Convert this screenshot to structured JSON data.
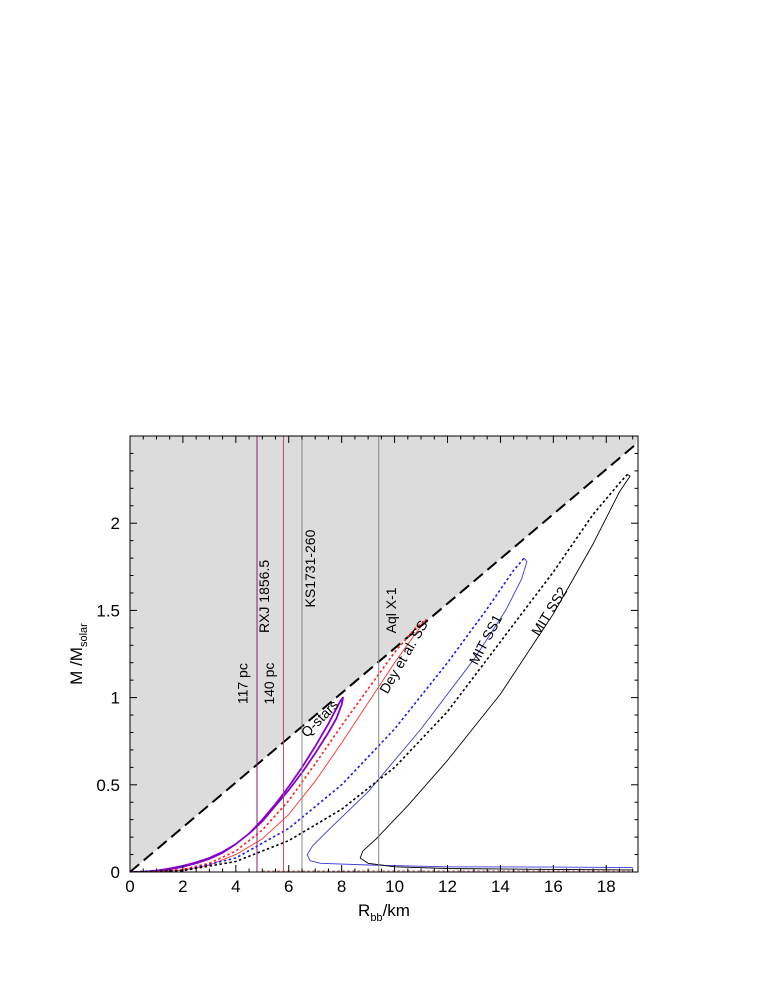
{
  "chart_data": {
    "type": "line",
    "title": "",
    "xlabel": {
      "main": "R",
      "sub": "bb",
      "rest": "/km"
    },
    "ylabel": {
      "main": "M /M",
      "sub": "solar"
    },
    "xlim": [
      0,
      19.2
    ],
    "ylim": [
      0,
      2.5
    ],
    "x_ticks": [
      0,
      2,
      4,
      6,
      8,
      10,
      12,
      14,
      16,
      18
    ],
    "y_ticks": [
      {
        "value": 0,
        "label": "0"
      },
      {
        "value": 0.5,
        "label": "0.5"
      },
      {
        "value": 1,
        "label": "1"
      },
      {
        "value": 1.5,
        "label": "1.5"
      },
      {
        "value": 2,
        "label": "2"
      }
    ],
    "forbidden_region": {
      "fill": "#dcdcdc",
      "line": [
        [
          0,
          0
        ],
        [
          19.1,
          2.45
        ]
      ]
    },
    "vertical_lines": [
      {
        "x": 4.8,
        "label": "117 pc",
        "label_x": 4.45,
        "label_y": 1.08,
        "color": "#8b1c6b"
      },
      {
        "x": 5.8,
        "label": "140 pc",
        "label_x": 5.45,
        "label_y": 1.08,
        "color": "#b05070"
      },
      {
        "x": 5.8,
        "label": "RXJ 1856.5",
        "label_x": 5.25,
        "label_y": 1.58,
        "color": "#b05070"
      },
      {
        "x": 6.5,
        "label": "KS1731-260",
        "label_x": 7.0,
        "label_y": 1.74,
        "color": "#888888"
      },
      {
        "x": 9.4,
        "label": "Aql X-1",
        "label_x": 10.05,
        "label_y": 1.5,
        "color": "#888888"
      }
    ],
    "series": [
      {
        "name": "Q-stars",
        "label_x": 7.3,
        "label_y": 0.86,
        "label_rotate": -45,
        "color": "#8800cc",
        "dash": "solid",
        "width": 1.8,
        "points": [
          [
            0,
            0
          ],
          [
            0.5,
            0.002
          ],
          [
            1,
            0.008
          ],
          [
            1.5,
            0.02
          ],
          [
            2,
            0.035
          ],
          [
            2.5,
            0.055
          ],
          [
            3,
            0.08
          ],
          [
            3.5,
            0.115
          ],
          [
            4,
            0.16
          ],
          [
            4.5,
            0.22
          ],
          [
            5,
            0.29
          ],
          [
            5.5,
            0.38
          ],
          [
            6,
            0.47
          ],
          [
            6.5,
            0.57
          ],
          [
            7,
            0.68
          ],
          [
            7.5,
            0.8
          ],
          [
            7.8,
            0.88
          ],
          [
            8.0,
            0.96
          ],
          [
            8.05,
            1.0
          ],
          [
            7.95,
            0.98
          ],
          [
            7.5,
            0.85
          ],
          [
            7,
            0.72
          ],
          [
            6.5,
            0.6
          ],
          [
            6,
            0.49
          ],
          [
            5.5,
            0.39
          ],
          [
            5,
            0.3
          ],
          [
            4.5,
            0.22
          ],
          [
            4,
            0.16
          ],
          [
            3.5,
            0.11
          ],
          [
            3,
            0.075
          ],
          [
            2.5,
            0.05
          ],
          [
            2,
            0.03
          ],
          [
            1.5,
            0.015
          ],
          [
            1,
            0.006
          ],
          [
            0.5,
            0.001
          ],
          [
            0,
            0
          ]
        ]
      },
      {
        "name": "",
        "color": "#ff2020",
        "dash": "dotted",
        "width": 1.6,
        "points": [
          [
            0,
            0
          ],
          [
            1,
            0.003
          ],
          [
            2,
            0.015
          ],
          [
            3,
            0.05
          ],
          [
            4,
            0.12
          ],
          [
            5,
            0.24
          ],
          [
            6,
            0.41
          ],
          [
            7,
            0.62
          ],
          [
            8,
            0.84
          ],
          [
            9,
            1.05
          ],
          [
            10,
            1.26
          ],
          [
            10.8,
            1.4
          ],
          [
            11.2,
            1.45
          ]
        ]
      },
      {
        "name": "Dey et al. SS",
        "label_x": 10.5,
        "label_y": 1.22,
        "label_rotate": -60,
        "color": "#ff3030",
        "dash": "solid",
        "width": 0.9,
        "points": [
          [
            0,
            0
          ],
          [
            1,
            0.002
          ],
          [
            2,
            0.01
          ],
          [
            3,
            0.04
          ],
          [
            4,
            0.1
          ],
          [
            5,
            0.19
          ],
          [
            6,
            0.33
          ],
          [
            7,
            0.52
          ],
          [
            8,
            0.74
          ],
          [
            9,
            0.97
          ],
          [
            10,
            1.2
          ],
          [
            10.8,
            1.37
          ],
          [
            11.2,
            1.45
          ]
        ]
      },
      {
        "name": "",
        "color": "#1a1aee",
        "dash": "dotted",
        "width": 1.6,
        "points": [
          [
            0,
            0
          ],
          [
            2,
            0.008
          ],
          [
            4,
            0.08
          ],
          [
            6,
            0.25
          ],
          [
            8,
            0.5
          ],
          [
            10,
            0.82
          ],
          [
            12,
            1.2
          ],
          [
            13.5,
            1.51
          ],
          [
            14.5,
            1.73
          ],
          [
            14.9,
            1.8
          ]
        ]
      },
      {
        "name": "MIT SS1",
        "label_x": 13.6,
        "label_y": 1.32,
        "label_rotate": -62,
        "color": "#3a3adc",
        "dash": "solid",
        "width": 0.9,
        "points": [
          [
            19,
            0.025
          ],
          [
            16,
            0.028
          ],
          [
            12,
            0.03
          ],
          [
            9,
            0.04
          ],
          [
            7.2,
            0.05
          ],
          [
            6.8,
            0.065
          ],
          [
            6.7,
            0.1
          ],
          [
            6.9,
            0.15
          ],
          [
            7.5,
            0.24
          ],
          [
            9,
            0.46
          ],
          [
            11,
            0.82
          ],
          [
            13,
            1.22
          ],
          [
            14.2,
            1.5
          ],
          [
            14.8,
            1.68
          ],
          [
            15.0,
            1.78
          ],
          [
            14.9,
            1.8
          ]
        ]
      },
      {
        "name": "",
        "color": "#000000",
        "dash": "dotted",
        "width": 1.6,
        "points": [
          [
            0,
            0
          ],
          [
            2,
            0.008
          ],
          [
            4,
            0.06
          ],
          [
            6,
            0.18
          ],
          [
            8,
            0.36
          ],
          [
            10,
            0.6
          ],
          [
            12,
            0.92
          ],
          [
            14,
            1.32
          ],
          [
            16,
            1.72
          ],
          [
            17.5,
            2.05
          ],
          [
            18.5,
            2.23
          ],
          [
            18.8,
            2.28
          ]
        ]
      },
      {
        "name": "MIT SS2",
        "label_x": 16.0,
        "label_y": 1.48,
        "label_rotate": -58,
        "color": "#000000",
        "dash": "solid",
        "width": 0.9,
        "points": [
          [
            19,
            0.012
          ],
          [
            16,
            0.015
          ],
          [
            12,
            0.02
          ],
          [
            10,
            0.03
          ],
          [
            9.0,
            0.05
          ],
          [
            8.7,
            0.08
          ],
          [
            8.8,
            0.12
          ],
          [
            9.3,
            0.19
          ],
          [
            10.5,
            0.38
          ],
          [
            12,
            0.64
          ],
          [
            14,
            1.02
          ],
          [
            16,
            1.48
          ],
          [
            17.5,
            1.88
          ],
          [
            18.5,
            2.18
          ],
          [
            18.9,
            2.27
          ],
          [
            18.8,
            2.28
          ]
        ]
      },
      {
        "name": "",
        "color": "#d88080",
        "dash": "dotted",
        "width": 1.2,
        "points": [
          [
            5,
            0.006
          ],
          [
            10,
            0.007
          ],
          [
            15,
            0.007
          ],
          [
            19,
            0.007
          ]
        ]
      }
    ]
  }
}
